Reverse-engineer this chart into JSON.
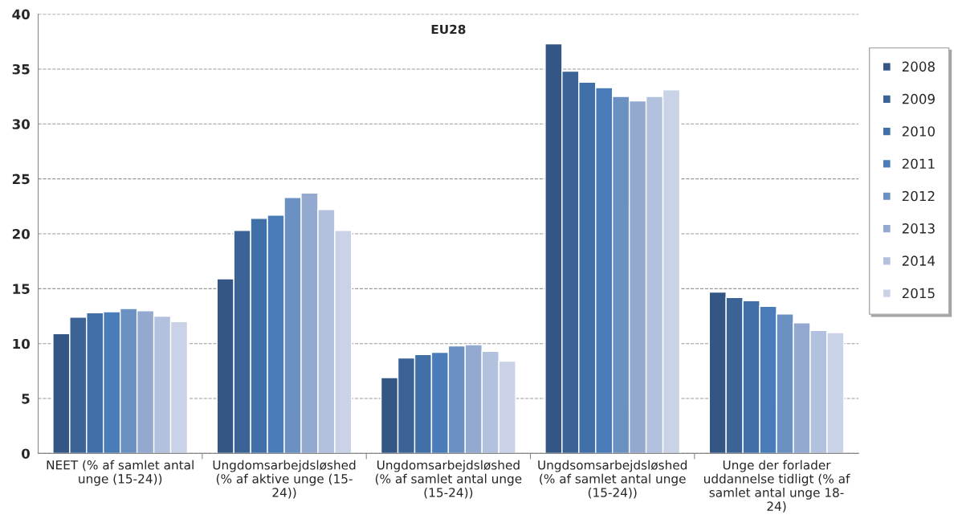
{
  "chart_data": {
    "type": "bar",
    "title": "EU28",
    "categories": [
      "NEET (% af samlet antal\nunge (15-24))",
      "Ungdomsarbejdsløshed\n(% af aktive unge (15-\n24))",
      "Ungdomsarbejdsløshed\n(% af samlet antal unge\n(15-24))",
      "Ungdsomsarbejdsløshed\n(% af samlet antal unge\n(15-24))",
      "Unge der forlader\nuddannelse tidligt (% af\nsamlet antal unge 18-\n24)"
    ],
    "series": [
      {
        "name": "2008",
        "color": "#345685",
        "values": [
          10.9,
          15.9,
          6.9,
          37.3,
          14.7
        ]
      },
      {
        "name": "2009",
        "color": "#3b6396",
        "values": [
          12.4,
          20.3,
          8.7,
          34.8,
          14.2
        ]
      },
      {
        "name": "2010",
        "color": "#4170a8",
        "values": [
          12.8,
          21.4,
          9.0,
          33.8,
          13.9
        ]
      },
      {
        "name": "2011",
        "color": "#4a7cb9",
        "values": [
          12.9,
          21.7,
          9.2,
          33.3,
          13.4
        ]
      },
      {
        "name": "2012",
        "color": "#6b90c2",
        "values": [
          13.2,
          23.3,
          9.8,
          32.5,
          12.7
        ]
      },
      {
        "name": "2013",
        "color": "#93a9d0",
        "values": [
          13.0,
          23.7,
          9.9,
          32.1,
          11.9
        ]
      },
      {
        "name": "2014",
        "color": "#b2c2de",
        "values": [
          12.5,
          22.2,
          9.3,
          32.5,
          11.2
        ]
      },
      {
        "name": "2015",
        "color": "#c9d2e6",
        "values": [
          12.0,
          20.3,
          8.4,
          33.1,
          11.0
        ]
      }
    ],
    "ylim": [
      0,
      40
    ],
    "yticks": [
      0,
      5,
      10,
      15,
      20,
      25,
      30,
      35,
      40
    ],
    "grid": "y",
    "legend": "right"
  }
}
